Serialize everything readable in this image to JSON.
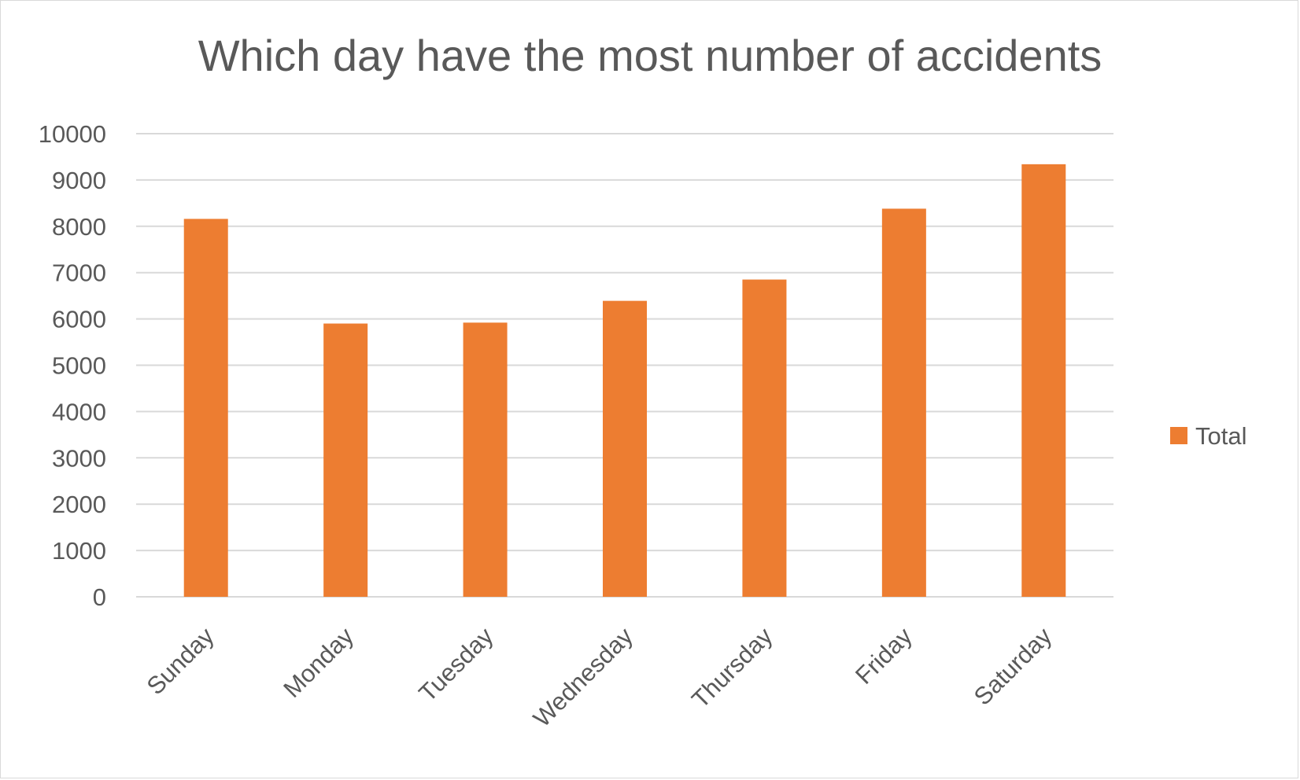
{
  "chart_data": {
    "type": "bar",
    "title": "Which day have the most number of accidents",
    "xlabel": "",
    "ylabel": "",
    "categories": [
      "Sunday",
      "Monday",
      "Tuesday",
      "Wednesday",
      "Thursday",
      "Friday",
      "Saturday"
    ],
    "series": [
      {
        "name": "Total",
        "values": [
          8160,
          5900,
          5920,
          6390,
          6850,
          8380,
          9340
        ]
      }
    ],
    "ylim": [
      0,
      10000
    ],
    "yticks": [
      "0",
      "1000",
      "2000",
      "3000",
      "4000",
      "5000",
      "6000",
      "7000",
      "8000",
      "9000",
      "10000"
    ],
    "grid": true,
    "legend": {
      "position": "right",
      "entries": [
        "Total"
      ]
    },
    "colors": {
      "bar": "#ED7D31",
      "grid": "#d9d9d9",
      "text": "#595959"
    }
  }
}
